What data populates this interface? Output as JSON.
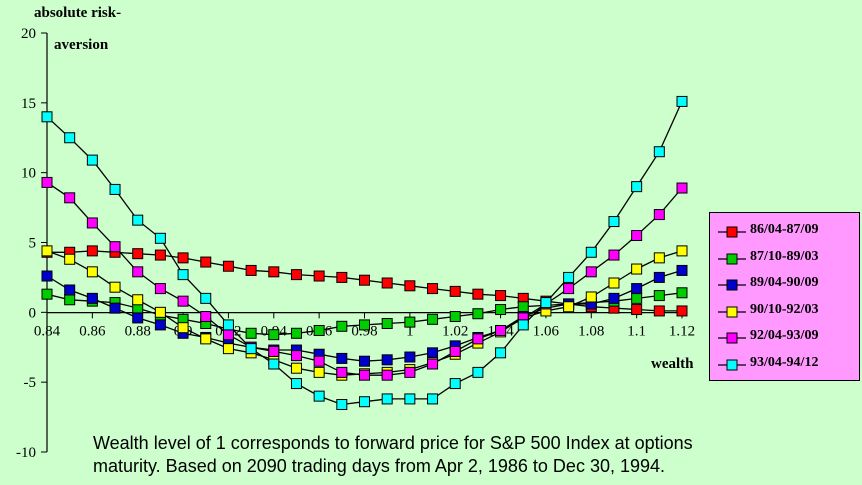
{
  "chart_data": {
    "type": "line",
    "ylabel_line1": "absolute risk-",
    "ylabel_line2": "aversion",
    "xlabel": "wealth",
    "x": [
      0.84,
      0.85,
      0.86,
      0.87,
      0.88,
      0.89,
      0.9,
      0.91,
      0.92,
      0.93,
      0.94,
      0.95,
      0.96,
      0.97,
      0.98,
      0.99,
      1.0,
      1.01,
      1.02,
      1.03,
      1.04,
      1.05,
      1.06,
      1.07,
      1.08,
      1.09,
      1.1,
      1.11,
      1.12
    ],
    "xlim": [
      0.84,
      1.12
    ],
    "ylim": [
      -10,
      20
    ],
    "x_tick_labels": [
      "0.84",
      "0.86",
      "0.88",
      "0.9",
      "0.92",
      "0.94",
      "0.96",
      "0.98",
      "1",
      "1.02",
      "1.04",
      "1.06",
      "1.08",
      "1.1",
      "1.12"
    ],
    "x_tick_values": [
      0.84,
      0.86,
      0.88,
      0.9,
      0.92,
      0.94,
      0.96,
      0.98,
      1.0,
      1.02,
      1.04,
      1.06,
      1.08,
      1.1,
      1.12
    ],
    "y_tick_labels": [
      "-10",
      "-5",
      "0",
      "5",
      "10",
      "15",
      "20"
    ],
    "y_tick_values": [
      -10,
      -5,
      0,
      5,
      10,
      15,
      20
    ],
    "grid": false,
    "legend_position": "right",
    "series": [
      {
        "name": "86/04-87/09",
        "color": "#ff0000",
        "values": [
          4.3,
          4.3,
          4.4,
          4.3,
          4.2,
          4.1,
          3.9,
          3.6,
          3.3,
          3.0,
          2.9,
          2.7,
          2.6,
          2.5,
          2.3,
          2.1,
          1.9,
          1.7,
          1.5,
          1.3,
          1.2,
          1.0,
          0.8,
          0.6,
          0.4,
          0.3,
          0.2,
          0.1,
          0.1
        ]
      },
      {
        "name": "87/10-89/03",
        "color": "#00cc00",
        "values": [
          1.3,
          0.9,
          0.8,
          0.7,
          0.3,
          -0.2,
          -0.5,
          -0.8,
          -1.2,
          -1.5,
          -1.6,
          -1.5,
          -1.3,
          -1.0,
          -0.9,
          -0.8,
          -0.7,
          -0.5,
          -0.3,
          -0.1,
          0.2,
          0.4,
          0.5,
          0.6,
          0.7,
          0.8,
          1.0,
          1.2,
          1.4
        ]
      },
      {
        "name": "89/04-90/09",
        "color": "#0000cc",
        "values": [
          2.6,
          1.6,
          1.0,
          0.3,
          -0.4,
          -0.9,
          -1.5,
          -1.8,
          -2.2,
          -2.5,
          -2.7,
          -2.7,
          -3.0,
          -3.3,
          -3.5,
          -3.4,
          -3.2,
          -2.9,
          -2.4,
          -1.8,
          -1.3,
          -0.3,
          0.3,
          0.6,
          0.6,
          1.0,
          1.7,
          2.5,
          3.0
        ]
      },
      {
        "name": "90/10-92/03",
        "color": "#ffff00",
        "values": [
          4.4,
          3.8,
          2.9,
          1.8,
          0.9,
          0.0,
          -1.1,
          -1.9,
          -2.6,
          -2.9,
          -3.4,
          -4.0,
          -4.3,
          -4.5,
          -4.4,
          -4.3,
          -4.1,
          -3.6,
          -3.0,
          -2.2,
          -1.4,
          -0.4,
          0.1,
          0.4,
          1.1,
          2.1,
          3.1,
          3.9,
          4.4
        ]
      },
      {
        "name": "92/04-93/09",
        "color": "#ff00ff",
        "values": [
          9.3,
          8.2,
          6.4,
          4.7,
          2.9,
          1.7,
          0.8,
          -0.3,
          -1.6,
          -2.5,
          -2.8,
          -3.1,
          -3.5,
          -4.3,
          -4.5,
          -4.5,
          -4.3,
          -3.7,
          -2.8,
          -1.9,
          -1.3,
          -0.4,
          0.6,
          1.7,
          2.9,
          4.1,
          5.5,
          7.0,
          8.9
        ]
      },
      {
        "name": "93/04-94/12",
        "color": "#00ffff",
        "values": [
          14.0,
          12.5,
          10.9,
          8.8,
          6.6,
          5.3,
          2.7,
          1.0,
          -0.9,
          -2.6,
          -3.7,
          -5.1,
          -6.0,
          -6.6,
          -6.4,
          -6.2,
          -6.2,
          -6.2,
          -5.1,
          -4.3,
          -2.9,
          -0.9,
          0.7,
          2.5,
          4.3,
          6.5,
          9.0,
          11.5,
          15.1
        ]
      }
    ]
  },
  "footnote": {
    "line1": "Wealth level of 1 corresponds to forward price for S&P 500 Index at options",
    "line2": "maturity. Based on 2090 trading days from Apr 2, 1986 to Dec 30, 1994."
  }
}
